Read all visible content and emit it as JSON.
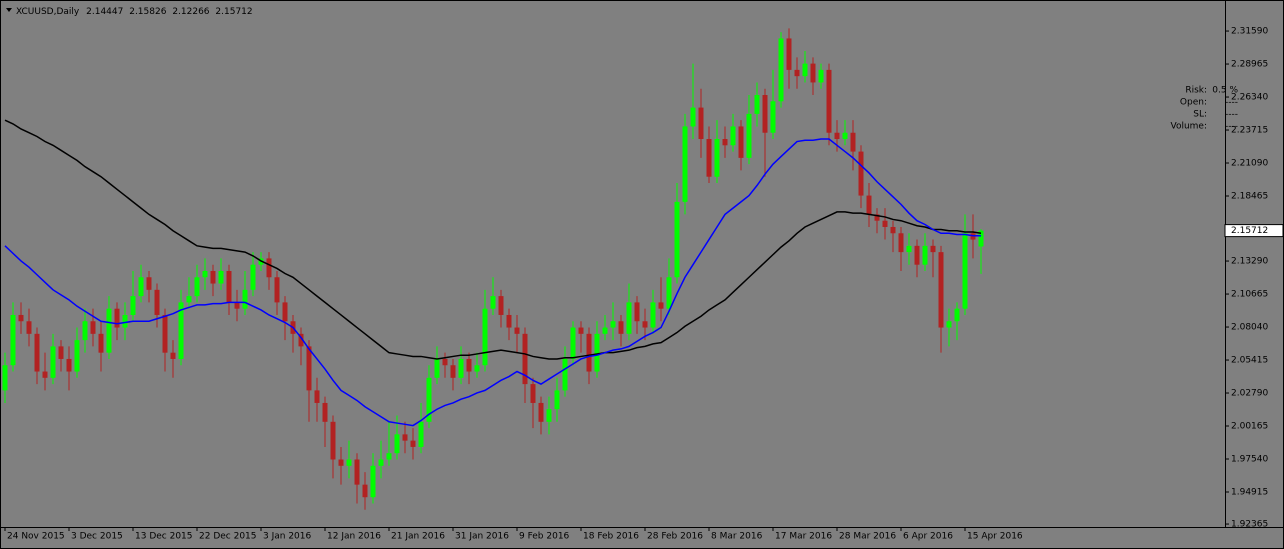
{
  "chart_data": {
    "type": "candlestick",
    "title": "XCUUSD,Daily",
    "categories": [
      "24 Nov 2015",
      null,
      null,
      null,
      null,
      null,
      null,
      null,
      "3 Dec 2015",
      null,
      null,
      null,
      null,
      null,
      null,
      null,
      "13 Dec 2015",
      null,
      null,
      null,
      null,
      null,
      null,
      null,
      "22 Dec 2015",
      null,
      null,
      null,
      null,
      null,
      null,
      null,
      "3 Jan 2016",
      null,
      null,
      null,
      null,
      null,
      null,
      null,
      "12 Jan 2016",
      null,
      null,
      null,
      null,
      null,
      null,
      null,
      "21 Jan 2016",
      null,
      null,
      null,
      null,
      null,
      null,
      null,
      "31 Jan 2016",
      null,
      null,
      null,
      null,
      null,
      null,
      null,
      "9 Feb 2016",
      null,
      null,
      null,
      null,
      null,
      null,
      null,
      "18 Feb 2016",
      null,
      null,
      null,
      null,
      null,
      null,
      null,
      "28 Feb 2016",
      null,
      null,
      null,
      null,
      null,
      null,
      null,
      "8 Mar 2016",
      null,
      null,
      null,
      null,
      null,
      null,
      null,
      "17 Mar 2016",
      null,
      null,
      null,
      null,
      null,
      null,
      null,
      "28 Mar 2016",
      null,
      null,
      null,
      null,
      null,
      null,
      null,
      "6 Apr 2016",
      null,
      null,
      null,
      null,
      null,
      null,
      null,
      "15 Apr 2016",
      null,
      null
    ],
    "open": [
      2.03,
      2.05,
      2.09,
      2.085,
      2.075,
      2.045,
      2.04,
      2.065,
      2.055,
      2.045,
      2.07,
      2.085,
      2.075,
      2.06,
      2.095,
      2.08,
      2.09,
      2.105,
      2.12,
      2.11,
      2.09,
      2.06,
      2.055,
      2.1,
      2.105,
      2.12,
      2.125,
      2.115,
      2.125,
      2.1,
      2.095,
      2.11,
      2.13,
      2.135,
      2.12,
      2.1,
      2.085,
      2.075,
      2.065,
      2.03,
      2.02,
      2.005,
      1.975,
      1.97,
      1.975,
      1.955,
      1.945,
      1.97,
      1.975,
      1.98,
      1.995,
      1.99,
      1.985,
      2.005,
      2.04,
      2.055,
      2.05,
      2.04,
      2.055,
      2.045,
      2.05,
      2.095,
      2.105,
      2.09,
      2.08,
      2.075,
      2.035,
      2.02,
      2.005,
      2.015,
      2.03,
      2.055,
      2.08,
      2.075,
      2.045,
      2.075,
      2.08,
      2.085,
      2.075,
      2.1,
      2.085,
      2.08,
      2.1,
      2.095,
      2.12,
      2.18,
      2.24,
      2.255,
      2.23,
      2.2,
      2.23,
      2.225,
      2.24,
      2.215,
      2.25,
      2.265,
      2.235,
      2.26,
      2.31,
      2.285,
      2.28,
      2.29,
      2.275,
      2.285,
      2.235,
      2.23,
      2.235,
      2.22,
      2.185,
      2.17,
      2.165,
      2.16,
      2.155,
      2.14,
      2.145,
      2.13,
      2.145,
      2.14,
      2.08,
      2.085,
      2.095,
      2.155,
      2.14447
    ],
    "high": [
      2.06,
      2.1,
      2.1,
      2.095,
      2.08,
      2.06,
      2.075,
      2.07,
      2.065,
      2.08,
      2.095,
      2.095,
      2.085,
      2.105,
      2.1,
      2.1,
      2.125,
      2.13,
      2.125,
      2.115,
      2.095,
      2.07,
      2.11,
      2.12,
      2.13,
      2.135,
      2.13,
      2.135,
      2.13,
      2.11,
      2.125,
      2.14,
      2.14,
      2.14,
      2.125,
      2.105,
      2.09,
      2.08,
      2.07,
      2.04,
      2.025,
      2.01,
      1.985,
      1.99,
      1.98,
      1.965,
      1.98,
      1.99,
      2.005,
      2.01,
      2.005,
      2.0,
      2.02,
      2.05,
      2.065,
      2.06,
      2.055,
      2.065,
      2.06,
      2.06,
      2.11,
      2.12,
      2.11,
      2.095,
      2.09,
      2.08,
      2.04,
      2.025,
      2.025,
      2.04,
      2.065,
      2.085,
      2.085,
      2.08,
      2.085,
      2.09,
      2.1,
      2.09,
      2.115,
      2.105,
      2.095,
      2.11,
      2.12,
      2.135,
      2.195,
      2.25,
      2.29,
      2.27,
      2.24,
      2.245,
      2.24,
      2.25,
      2.245,
      2.265,
      2.275,
      2.27,
      2.285,
      2.315,
      2.318,
      2.295,
      2.3,
      2.295,
      2.29,
      2.29,
      2.245,
      2.245,
      2.245,
      2.225,
      2.195,
      2.175,
      2.175,
      2.165,
      2.16,
      2.155,
      2.15,
      2.155,
      2.15,
      2.145,
      2.095,
      2.1,
      2.17,
      2.17,
      2.15826
    ],
    "low": [
      2.02,
      2.045,
      2.075,
      2.065,
      2.035,
      2.03,
      2.035,
      2.045,
      2.03,
      2.04,
      2.06,
      2.065,
      2.045,
      2.055,
      2.07,
      2.07,
      2.085,
      2.1,
      2.1,
      2.08,
      2.045,
      2.04,
      2.05,
      2.095,
      2.1,
      2.11,
      2.105,
      2.11,
      2.09,
      2.085,
      2.09,
      2.105,
      2.125,
      2.11,
      2.09,
      2.07,
      2.06,
      2.05,
      2.005,
      2.005,
      1.985,
      1.96,
      1.955,
      1.96,
      1.94,
      1.935,
      1.94,
      1.96,
      1.97,
      1.975,
      1.98,
      1.975,
      1.98,
      2.0,
      2.035,
      2.04,
      2.03,
      2.035,
      2.035,
      2.04,
      2.045,
      2.09,
      2.08,
      2.07,
      2.06,
      2.02,
      2.0,
      1.995,
      1.995,
      2.005,
      2.025,
      2.05,
      2.06,
      2.035,
      2.04,
      2.07,
      2.07,
      2.065,
      2.07,
      2.075,
      2.07,
      2.075,
      2.085,
      2.09,
      2.115,
      2.17,
      2.23,
      2.215,
      2.195,
      2.195,
      2.215,
      2.22,
      2.205,
      2.21,
      2.24,
      2.2,
      2.23,
      2.255,
      2.27,
      2.27,
      2.275,
      2.265,
      2.27,
      2.225,
      2.22,
      2.225,
      2.205,
      2.175,
      2.16,
      2.155,
      2.15,
      2.14,
      2.125,
      2.13,
      2.12,
      2.125,
      2.12,
      2.06,
      2.065,
      2.07,
      2.09,
      2.135,
      2.12266
    ],
    "close": [
      2.05,
      2.09,
      2.085,
      2.075,
      2.045,
      2.04,
      2.065,
      2.055,
      2.045,
      2.07,
      2.085,
      2.075,
      2.06,
      2.095,
      2.08,
      2.09,
      2.105,
      2.12,
      2.11,
      2.09,
      2.06,
      2.055,
      2.1,
      2.105,
      2.12,
      2.125,
      2.115,
      2.125,
      2.1,
      2.095,
      2.11,
      2.13,
      2.135,
      2.12,
      2.1,
      2.085,
      2.075,
      2.065,
      2.03,
      2.02,
      2.005,
      1.975,
      1.97,
      1.975,
      1.955,
      1.945,
      1.97,
      1.975,
      1.98,
      1.995,
      1.99,
      1.985,
      2.005,
      2.04,
      2.055,
      2.05,
      2.04,
      2.055,
      2.045,
      2.05,
      2.095,
      2.105,
      2.09,
      2.08,
      2.075,
      2.035,
      2.02,
      2.005,
      2.015,
      2.03,
      2.055,
      2.08,
      2.075,
      2.045,
      2.075,
      2.08,
      2.085,
      2.075,
      2.1,
      2.085,
      2.08,
      2.1,
      2.095,
      2.12,
      2.18,
      2.24,
      2.255,
      2.23,
      2.2,
      2.23,
      2.225,
      2.24,
      2.215,
      2.25,
      2.265,
      2.235,
      2.26,
      2.31,
      2.285,
      2.28,
      2.29,
      2.275,
      2.285,
      2.235,
      2.23,
      2.235,
      2.22,
      2.185,
      2.17,
      2.165,
      2.16,
      2.155,
      2.14,
      2.145,
      2.13,
      2.145,
      2.14,
      2.08,
      2.085,
      2.095,
      2.155,
      2.15,
      2.15712
    ],
    "up_color": "#00ff00",
    "down_color": "#b22222",
    "moving_averages": [
      {
        "color": "#000000",
        "values": [
          2.245,
          2.242,
          2.238,
          2.235,
          2.232,
          2.228,
          2.225,
          2.221,
          2.217,
          2.213,
          2.208,
          2.204,
          2.2,
          2.195,
          2.19,
          2.185,
          2.18,
          2.175,
          2.17,
          2.166,
          2.162,
          2.157,
          2.153,
          2.149,
          2.145,
          2.144,
          2.143,
          2.143,
          2.142,
          2.141,
          2.14,
          2.137,
          2.133,
          2.13,
          2.127,
          2.123,
          2.12,
          2.115,
          2.11,
          2.105,
          2.1,
          2.095,
          2.09,
          2.085,
          2.08,
          2.075,
          2.07,
          2.065,
          2.06,
          2.059,
          2.058,
          2.057,
          2.057,
          2.056,
          2.055,
          2.056,
          2.057,
          2.058,
          2.058,
          2.059,
          2.06,
          2.061,
          2.062,
          2.061,
          2.06,
          2.059,
          2.057,
          2.056,
          2.055,
          2.055,
          2.056,
          2.056,
          2.057,
          2.058,
          2.059,
          2.06,
          2.06,
          2.061,
          2.062,
          2.064,
          2.065,
          2.067,
          2.068,
          2.072,
          2.076,
          2.081,
          2.085,
          2.089,
          2.094,
          2.098,
          2.102,
          2.108,
          2.114,
          2.12,
          2.126,
          2.132,
          2.138,
          2.144,
          2.149,
          2.155,
          2.16,
          2.163,
          2.166,
          2.169,
          2.172,
          2.172,
          2.171,
          2.171,
          2.17,
          2.169,
          2.168,
          2.166,
          2.165,
          2.163,
          2.161,
          2.16,
          2.158,
          2.158,
          2.157,
          2.157,
          2.156,
          2.156,
          2.155
        ]
      },
      {
        "color": "#0000ff",
        "values": [
          2.145,
          2.139,
          2.133,
          2.128,
          2.122,
          2.116,
          2.11,
          2.106,
          2.102,
          2.097,
          2.093,
          2.089,
          2.085,
          2.084,
          2.083,
          2.084,
          2.085,
          2.085,
          2.085,
          2.087,
          2.089,
          2.091,
          2.094,
          2.096,
          2.098,
          2.098,
          2.099,
          2.099,
          2.1,
          2.1,
          2.1,
          2.097,
          2.094,
          2.09,
          2.087,
          2.084,
          2.08,
          2.072,
          2.063,
          2.055,
          2.047,
          2.038,
          2.03,
          2.026,
          2.022,
          2.017,
          2.013,
          2.009,
          2.005,
          2.004,
          2.003,
          2.002,
          2.006,
          2.011,
          2.015,
          2.018,
          2.02,
          2.023,
          2.025,
          2.028,
          2.03,
          2.034,
          2.038,
          2.041,
          2.045,
          2.042,
          2.038,
          2.035,
          2.039,
          2.043,
          2.047,
          2.051,
          2.055,
          2.057,
          2.058,
          2.06,
          2.062,
          2.063,
          2.065,
          2.069,
          2.073,
          2.076,
          2.08,
          2.093,
          2.107,
          2.12,
          2.13,
          2.14,
          2.15,
          2.16,
          2.17,
          2.175,
          2.18,
          2.185,
          2.193,
          2.202,
          2.21,
          2.216,
          2.222,
          2.228,
          2.229,
          2.229,
          2.23,
          2.23,
          2.225,
          2.22,
          2.215,
          2.209,
          2.203,
          2.196,
          2.19,
          2.184,
          2.178,
          2.171,
          2.165,
          2.162,
          2.158,
          2.155,
          2.155,
          2.154,
          2.154,
          2.153,
          2.153
        ]
      }
    ],
    "ylim": [
      1.9213,
      2.3406
    ],
    "yticks": [
      {
        "value": 2.3159,
        "label": "2.31590"
      },
      {
        "value": 2.28965,
        "label": "2.28965"
      },
      {
        "value": 2.2634,
        "label": "2.26340"
      },
      {
        "value": 2.23715,
        "label": "2.23715"
      },
      {
        "value": 2.2109,
        "label": "2.21090"
      },
      {
        "value": 2.18465,
        "label": "2.18465"
      },
      {
        "value": 2.1329,
        "label": "2.13290"
      },
      {
        "value": 2.10665,
        "label": "2.10665"
      },
      {
        "value": 2.0804,
        "label": "2.08040"
      },
      {
        "value": 2.05415,
        "label": "2.05415"
      },
      {
        "value": 2.0279,
        "label": "2.02790"
      },
      {
        "value": 2.00165,
        "label": "2.00165"
      },
      {
        "value": 1.9754,
        "label": "1.97540"
      },
      {
        "value": 1.94915,
        "label": "1.94915"
      },
      {
        "value": 1.92365,
        "label": "1.92365"
      }
    ],
    "grid": false
  },
  "panel": {
    "rows": [
      [
        "Risk:",
        "0.5 %"
      ],
      [
        "Open:",
        "----"
      ],
      [
        "SL:",
        "----"
      ],
      [
        "Volume:",
        "----"
      ]
    ]
  }
}
